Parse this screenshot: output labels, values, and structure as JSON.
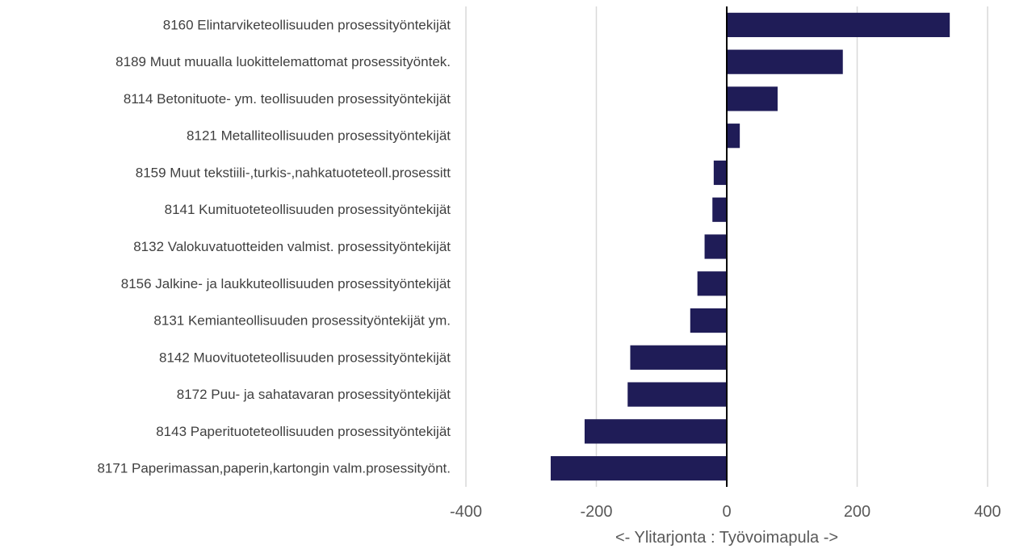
{
  "chart_data": {
    "type": "bar",
    "orientation": "horizontal",
    "categories": [
      "8160 Elintarviketeollisuuden prosessityöntekijät",
      "8189 Muut muualla luokittelemattomat prosessityöntek.",
      "8114 Betonituote- ym. teollisuuden prosessityöntekijät",
      "8121 Metalliteollisuuden prosessityöntekijät",
      "8159 Muut tekstiili-,turkis-,nahkatuoteteoll.prosessitt",
      "8141 Kumituoteteollisuuden prosessityöntekijät",
      "8132 Valokuvatuotteiden valmist. prosessityöntekijät",
      "8156 Jalkine- ja laukkuteollisuuden prosessityöntekijät",
      "8131 Kemianteollisuuden prosessityöntekijät ym.",
      "8142 Muovituoteteollisuuden prosessityöntekijät",
      "8172 Puu- ja sahatavaran prosessityöntekijät",
      "8143 Paperituoteteollisuuden prosessityöntekijät",
      "8171 Paperimassan,paperin,kartongin valm.prosessityönt."
    ],
    "values": [
      342,
      178,
      78,
      20,
      -20,
      -22,
      -34,
      -45,
      -56,
      -148,
      -152,
      -218,
      -270
    ],
    "xlabel": "<- Ylitarjonta : Työvoimapula ->",
    "xlim": [
      -400,
      400
    ],
    "xticks": [
      -400,
      -200,
      0,
      200,
      400
    ],
    "xtick_labels": [
      "-400",
      "-200",
      "0",
      "200",
      "400"
    ],
    "grid": "vertical",
    "legend": "none",
    "bar_color": "#1f1c57",
    "grid_color": "#d9d9d9",
    "zero_line_color": "#000000"
  }
}
